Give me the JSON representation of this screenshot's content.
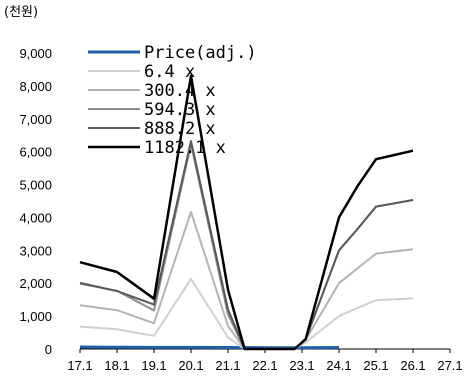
{
  "chart_data": {
    "type": "line",
    "unit_label": "(천원)",
    "x_tick_labels": [
      "17.1",
      "18.1",
      "19.1",
      "20.1",
      "21.1",
      "22.1",
      "23.1",
      "24.1",
      "25.1",
      "26.1",
      "27.1"
    ],
    "y_tick_labels": [
      "0",
      "1,000",
      "2,000",
      "3,000",
      "4,000",
      "5,000",
      "6,000",
      "7,000",
      "8,000",
      "9,000"
    ],
    "ylim": [
      0,
      9000
    ],
    "xlim": [
      17.1,
      27.1
    ],
    "grid": false,
    "legend_position": "top-center",
    "series": [
      {
        "name": "Price(adj.)",
        "color": "#1f5fa8",
        "width": 3,
        "points": [
          [
            17.1,
            60
          ],
          [
            18.1,
            55
          ],
          [
            19.1,
            50
          ],
          [
            20.1,
            50
          ],
          [
            21.1,
            45
          ],
          [
            22.1,
            40
          ],
          [
            23.1,
            40
          ],
          [
            24.1,
            45
          ]
        ]
      },
      {
        "name": "6.4 x",
        "color": "#d0d0d0",
        "width": 2,
        "points": [
          [
            17.1,
            680
          ],
          [
            18.1,
            600
          ],
          [
            19.1,
            400
          ],
          [
            20.1,
            2130
          ],
          [
            21.1,
            350
          ],
          [
            21.55,
            0
          ],
          [
            22.9,
            0
          ],
          [
            23.2,
            200
          ],
          [
            24.1,
            1000
          ],
          [
            24.6,
            1250
          ],
          [
            25.1,
            1480
          ],
          [
            26.1,
            1540
          ]
        ]
      },
      {
        "name": "300.4 x",
        "color": "#b3b3b3",
        "width": 2,
        "points": [
          [
            17.1,
            1330
          ],
          [
            18.1,
            1180
          ],
          [
            19.1,
            780
          ],
          [
            20.1,
            4170
          ],
          [
            21.1,
            700
          ],
          [
            21.55,
            0
          ],
          [
            22.9,
            0
          ],
          [
            23.2,
            280
          ],
          [
            24.1,
            2000
          ],
          [
            24.6,
            2450
          ],
          [
            25.1,
            2900
          ],
          [
            26.1,
            3030
          ]
        ]
      },
      {
        "name": "594.3 x",
        "color": "#8c8c8c",
        "width": 2,
        "points": [
          [
            17.1,
            1990
          ],
          [
            18.1,
            1770
          ],
          [
            19.1,
            1170
          ],
          [
            20.1,
            6230
          ],
          [
            21.1,
            1050
          ],
          [
            21.55,
            0
          ],
          [
            22.9,
            0
          ],
          [
            23.2,
            300
          ],
          [
            24.1,
            3000
          ],
          [
            24.6,
            3650
          ],
          [
            25.1,
            4330
          ],
          [
            26.1,
            4530
          ]
        ]
      },
      {
        "name": "888.2 x",
        "color": "#595959",
        "width": 2,
        "points": [
          [
            17.1,
            2010
          ],
          [
            18.1,
            1760
          ],
          [
            19.1,
            1350
          ],
          [
            20.1,
            6320
          ],
          [
            21.1,
            1200
          ],
          [
            21.55,
            0
          ],
          [
            22.9,
            0
          ],
          [
            23.2,
            300
          ],
          [
            24.1,
            3000
          ],
          [
            24.6,
            3650
          ],
          [
            25.1,
            4330
          ],
          [
            26.1,
            4530
          ]
        ]
      },
      {
        "name": "1182.1 x",
        "color": "#000000",
        "width": 2.5,
        "points": [
          [
            17.1,
            2640
          ],
          [
            18.1,
            2340
          ],
          [
            19.1,
            1530
          ],
          [
            20.1,
            8300
          ],
          [
            21.1,
            1800
          ],
          [
            21.55,
            0
          ],
          [
            22.9,
            0
          ],
          [
            23.2,
            300
          ],
          [
            24.1,
            4000
          ],
          [
            24.6,
            4950
          ],
          [
            25.1,
            5770
          ],
          [
            26.1,
            6030
          ]
        ]
      }
    ]
  }
}
